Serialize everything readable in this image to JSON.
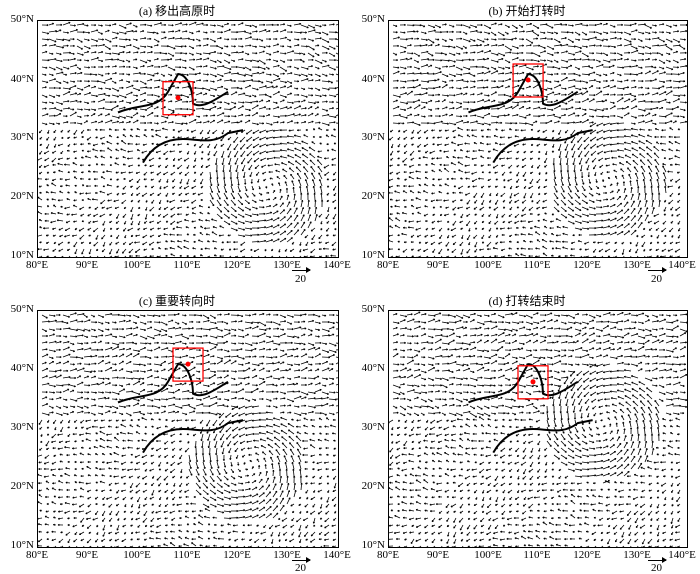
{
  "panels": [
    {
      "title": "(a) 移出高原时"
    },
    {
      "title": "(b) 开始打转时"
    },
    {
      "title": "(c) 重要转向时"
    },
    {
      "title": "(d) 打转结束时"
    }
  ],
  "lat_labels": [
    "50°N",
    "40°N",
    "30°N",
    "20°N",
    "10°N"
  ],
  "lon_labels": [
    "80°E",
    "90°E",
    "100°E",
    "110°E",
    "120°E",
    "130°E",
    "140°E"
  ],
  "reference_vector": {
    "value": "20"
  },
  "map": {
    "extent": {
      "lon": [
        80,
        140
      ],
      "lat": [
        10,
        50
      ]
    },
    "colors": {
      "vectors": "#000000",
      "box": "#ff0000",
      "center": "#ff0000"
    },
    "cyclone_centers": [
      {
        "panel": "a",
        "lon": 126,
        "lat": 22
      },
      {
        "panel": "b",
        "lon": 124,
        "lat": 23
      },
      {
        "panel": "c",
        "lon": 122,
        "lat": 24
      },
      {
        "panel": "d",
        "lon": 123,
        "lat": 31
      }
    ],
    "vortex_centers": [
      {
        "panel": "a",
        "lon": 108,
        "lat": 37
      },
      {
        "panel": "b",
        "lon": 108,
        "lat": 40
      },
      {
        "panel": "c",
        "lon": 110,
        "lat": 41
      },
      {
        "panel": "d",
        "lon": 109,
        "lat": 38
      }
    ]
  }
}
